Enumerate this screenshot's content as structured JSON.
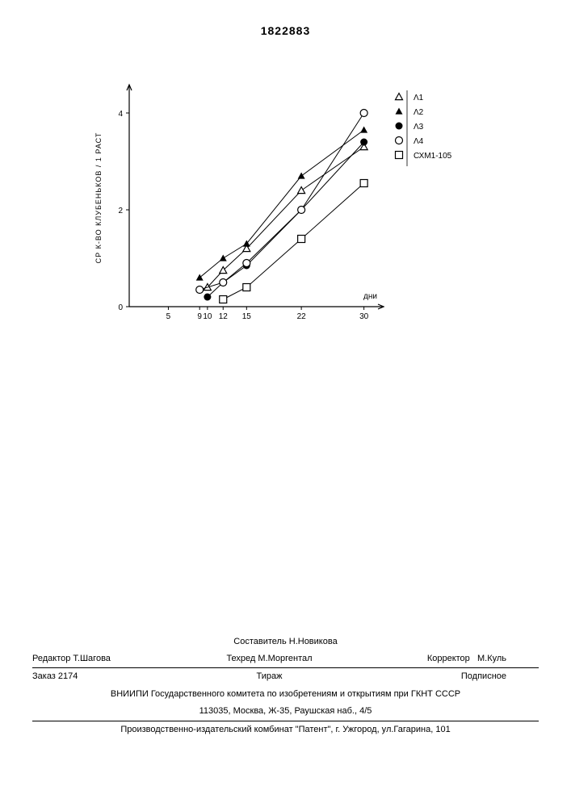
{
  "page_number": "1822883",
  "chart": {
    "type": "line-scatter",
    "xlabel": "дни",
    "ylabel": "СР  К-ВО КЛУБЕНЬКОВ / 1 РАСТ",
    "xlim": [
      0,
      32
    ],
    "ylim": [
      0,
      4.5
    ],
    "xticks": [
      5,
      9,
      10,
      12,
      15,
      22,
      30
    ],
    "xtick_labels": [
      "5",
      "9",
      "10",
      "12",
      "15",
      "22",
      "30"
    ],
    "yticks": [
      0,
      2,
      4
    ],
    "ytick_labels": [
      "0",
      "2",
      "4"
    ],
    "background": "#ffffff",
    "axis_color": "#000000",
    "label_fontsize": 9,
    "tick_fontsize": 10,
    "series": [
      {
        "name": "Λ1",
        "marker": "triangle-open",
        "color": "#000000",
        "x": [
          10,
          12,
          15,
          22,
          30
        ],
        "y": [
          0.4,
          0.75,
          1.2,
          2.4,
          3.3
        ]
      },
      {
        "name": "Λ2",
        "marker": "triangle-filled",
        "color": "#000000",
        "x": [
          9,
          12,
          15,
          22,
          30
        ],
        "y": [
          0.6,
          1.0,
          1.3,
          2.7,
          3.65
        ]
      },
      {
        "name": "Λ3",
        "marker": "circle-filled",
        "color": "#000000",
        "x": [
          10,
          12,
          15,
          22,
          30
        ],
        "y": [
          0.2,
          0.5,
          0.85,
          2.0,
          3.4
        ]
      },
      {
        "name": "Λ4",
        "marker": "circle-open",
        "color": "#000000",
        "x": [
          9,
          12,
          15,
          22,
          30
        ],
        "y": [
          0.35,
          0.5,
          0.9,
          2.0,
          4.0
        ]
      },
      {
        "name": "СХМ1-105",
        "marker": "square-open",
        "color": "#000000",
        "x": [
          12,
          15,
          22,
          30
        ],
        "y": [
          0.15,
          0.4,
          1.4,
          2.55
        ]
      }
    ],
    "legend_position": "top-right"
  },
  "footer": {
    "compiler_label": "Составитель",
    "compiler_name": "Н.Новикова",
    "editor_label": "Редактор",
    "editor_name": "Т.Шагова",
    "techred_label": "Техред",
    "techred_name": "М.Моргентал",
    "corrector_label": "Корректор",
    "corrector_name": "М.Куль",
    "order_label": "Заказ",
    "order_num": "2174",
    "tirage_label": "Тираж",
    "subscription": "Подписное",
    "org_line": "ВНИИПИ Государственного комитета по изобретениям и открытиям при ГКНТ СССР",
    "address": "113035, Москва, Ж-35, Раушская наб., 4/5",
    "publisher": "Производственно-издательский комбинат \"Патент\", г. Ужгород, ул.Гагарина, 101"
  }
}
